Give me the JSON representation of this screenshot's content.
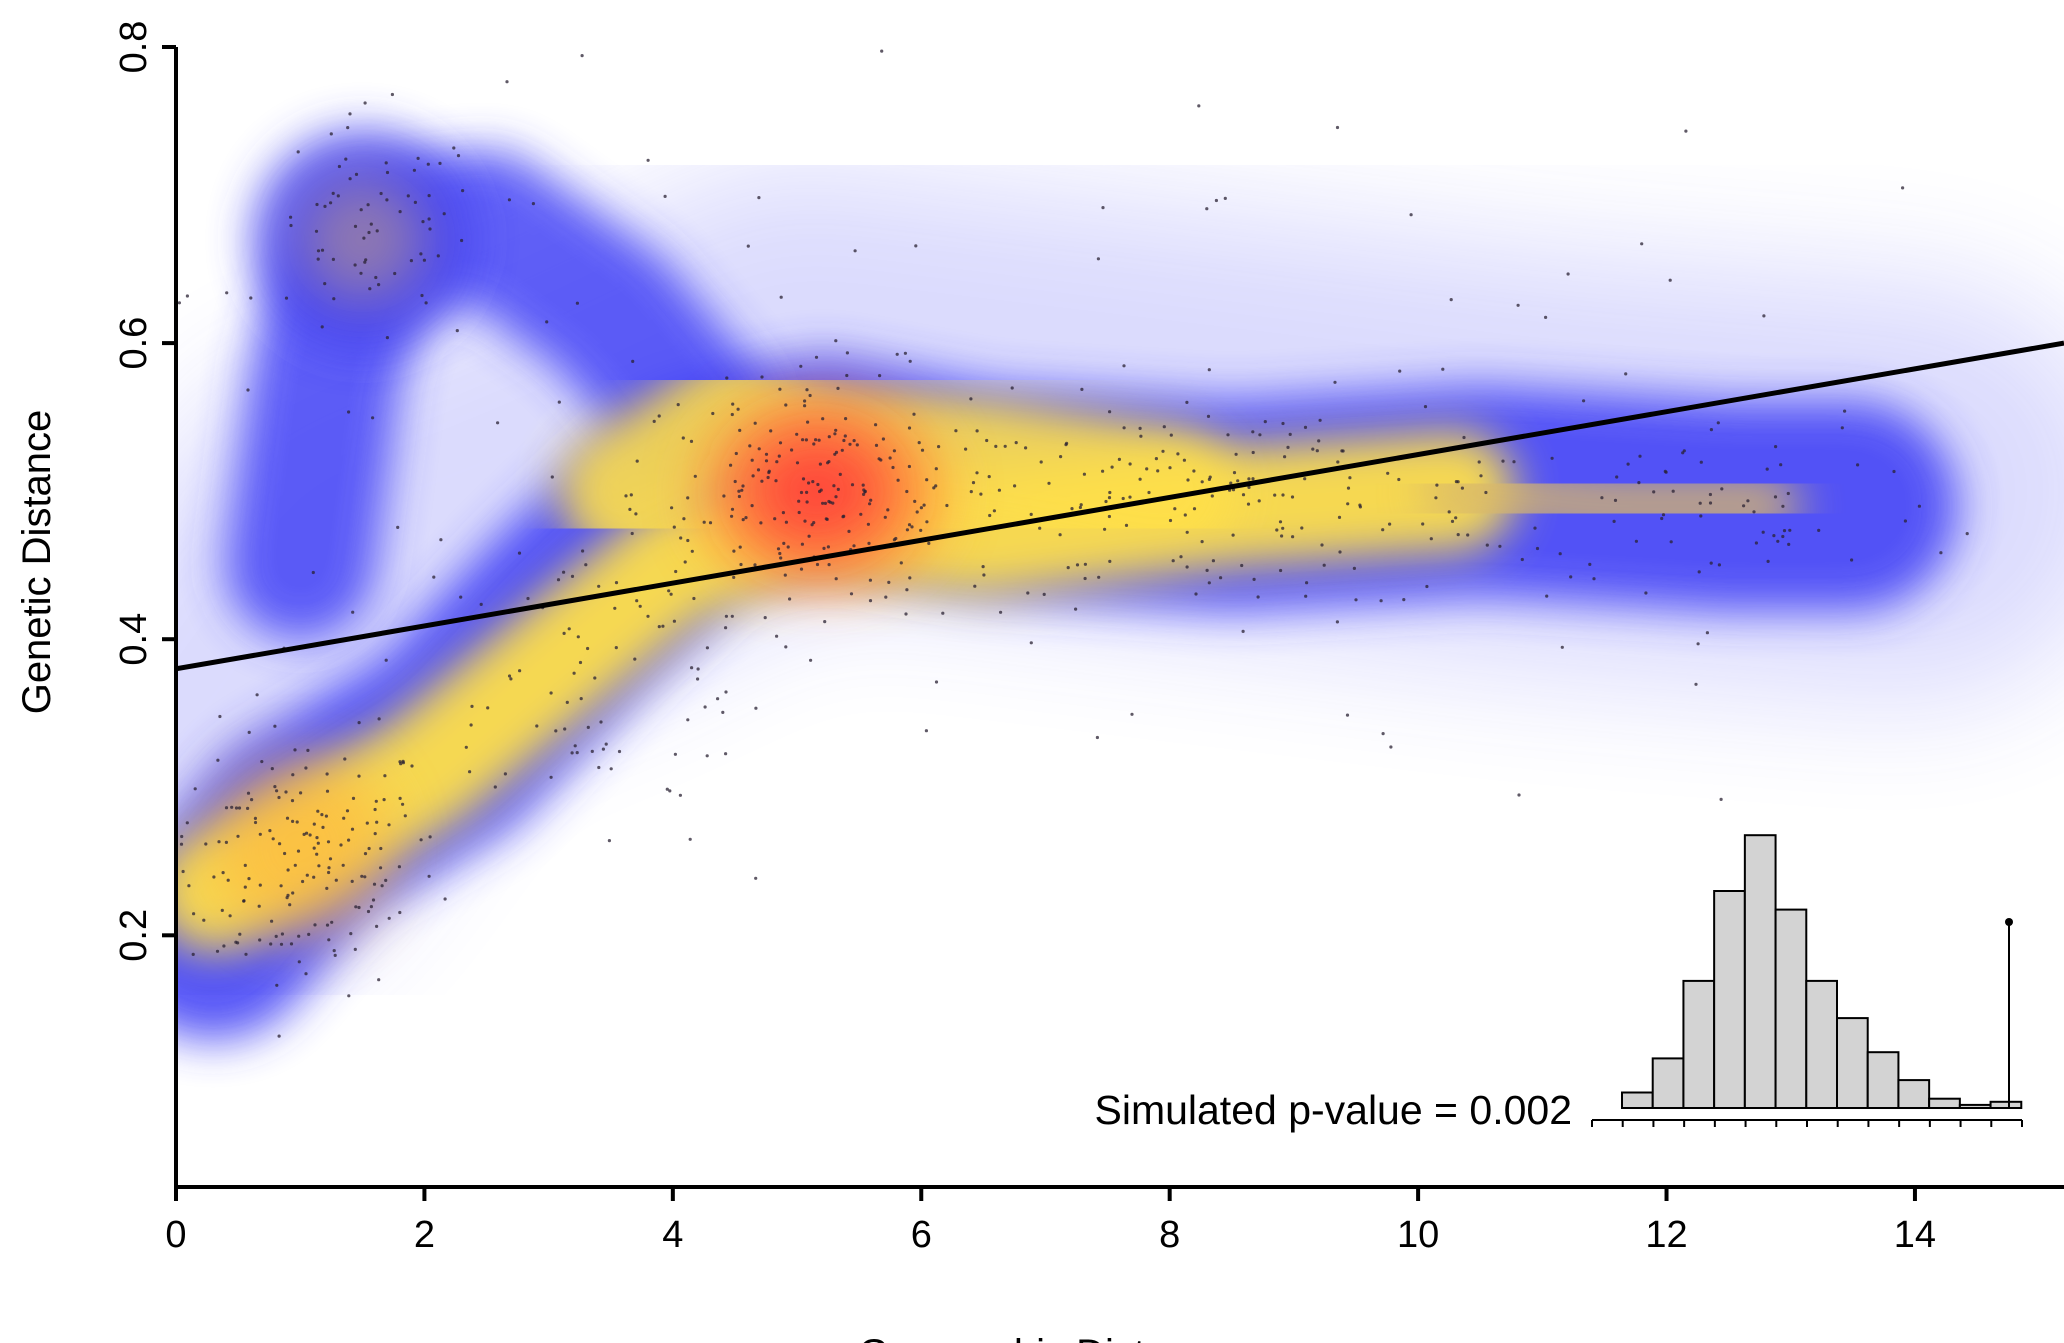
{
  "chart_data": [
    {
      "type": "scatter",
      "title": "",
      "xlabel": "Geographic Distance",
      "ylabel": "Genetic Distance",
      "xlim": [
        0,
        15.2
      ],
      "ylim": [
        0.03,
        0.8
      ],
      "xticks": [
        0,
        2,
        4,
        6,
        8,
        10,
        12,
        14
      ],
      "yticks": [
        0.2,
        0.4,
        0.6,
        0.8
      ],
      "x_tick_labels": [
        "0",
        "2",
        "4",
        "6",
        "8",
        "10",
        "12",
        "14"
      ],
      "y_tick_labels": [
        "0.2",
        "0.4",
        "0.6",
        "0.8"
      ],
      "grid": false,
      "density_colors": [
        "#ffffff",
        "#3a3af5",
        "#ffe04a",
        "#ff3b3b"
      ],
      "density_modes": [
        {
          "x": 1.5,
          "y": 0.67,
          "level": 0.45
        },
        {
          "x": 5.2,
          "y": 0.5,
          "level": 1.0
        },
        {
          "x": 1.0,
          "y": 0.26,
          "level": 0.8
        },
        {
          "x": 8.5,
          "y": 0.49,
          "level": 0.65
        },
        {
          "x": 12.5,
          "y": 0.49,
          "level": 0.4
        }
      ],
      "regression_line": {
        "x": [
          0,
          15.2
        ],
        "y": [
          0.38,
          0.6
        ]
      },
      "annotation": "Simulated p-value = 0.002"
    },
    {
      "type": "bar",
      "title": "",
      "xlabel": "",
      "ylabel": "",
      "bin_edges": [
        0,
        1,
        2,
        3,
        4,
        5,
        6,
        7,
        8,
        9,
        10,
        11,
        12,
        13
      ],
      "values": [
        0.05,
        0.16,
        0.41,
        0.7,
        0.88,
        0.64,
        0.41,
        0.29,
        0.18,
        0.09,
        0.03,
        0.01,
        0.02
      ],
      "observed_marker": {
        "x": 12.6,
        "value": 0.5
      },
      "xticks": [
        0,
        1,
        2,
        3,
        4,
        5,
        6,
        7,
        8,
        9,
        10,
        11,
        12,
        13,
        14
      ]
    }
  ]
}
